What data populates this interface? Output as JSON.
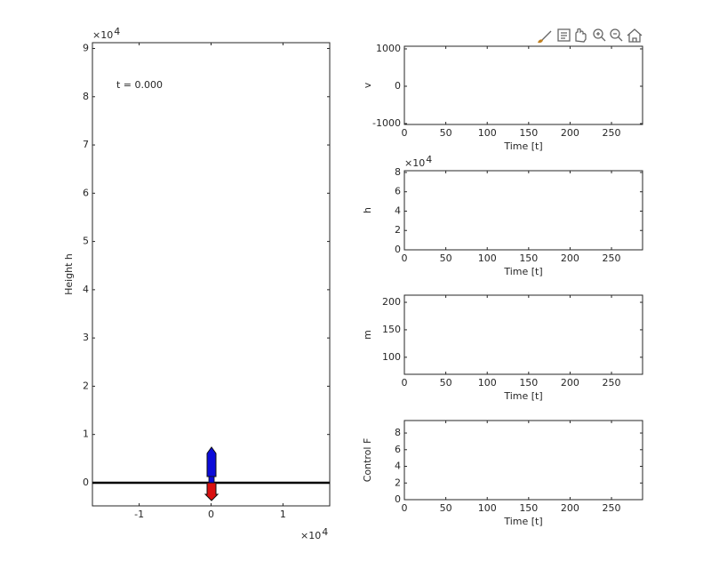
{
  "chart_data": [
    {
      "type": "line",
      "annotation": "t = 0.000",
      "ylabel": "Height h",
      "xlim": [
        -16500,
        16500
      ],
      "xticks": [
        {
          "value": -10000,
          "label": "-1"
        },
        0,
        {
          "value": 10000,
          "label": "1"
        }
      ],
      "x_exponent": {
        "base": "×10",
        "power": "4"
      },
      "ylim": [
        -4800,
        91200
      ],
      "yticks": [
        0,
        {
          "value": 10000,
          "label": "1"
        },
        {
          "value": 20000,
          "label": "2"
        },
        {
          "value": 30000,
          "label": "3"
        },
        {
          "value": 40000,
          "label": "4"
        },
        {
          "value": 50000,
          "label": "5"
        },
        {
          "value": 60000,
          "label": "6"
        },
        {
          "value": 70000,
          "label": "7"
        },
        {
          "value": 80000,
          "label": "8"
        },
        {
          "value": 90000,
          "label": "9"
        }
      ],
      "y_exponent": {
        "base": "×10",
        "power": "4"
      }
    },
    {
      "type": "line",
      "xlabel": "Time [t]",
      "ylabel": "v",
      "xlim": [
        0,
        287.5
      ],
      "xticks": [
        0,
        50,
        100,
        150,
        200,
        250
      ],
      "ylim": [
        -1024,
        1071
      ],
      "yticks": [
        -1000,
        0,
        1000
      ]
    },
    {
      "type": "line",
      "xlabel": "Time [t]",
      "ylabel": "h",
      "xlim": [
        0,
        287.5
      ],
      "xticks": [
        0,
        50,
        100,
        150,
        200,
        250
      ],
      "ylim": [
        0,
        81800
      ],
      "yticks": [
        0,
        {
          "value": 20000,
          "label": "2"
        },
        {
          "value": 40000,
          "label": "4"
        },
        {
          "value": 60000,
          "label": "6"
        },
        {
          "value": 80000,
          "label": "8"
        }
      ],
      "y_exponent": {
        "base": "×10",
        "power": "4"
      }
    },
    {
      "type": "line",
      "xlabel": "Time [t]",
      "ylabel": "m",
      "xlim": [
        0,
        287.5
      ],
      "xticks": [
        0,
        50,
        100,
        150,
        200,
        250
      ],
      "ylim": [
        69,
        213
      ],
      "yticks": [
        100,
        150,
        200
      ]
    },
    {
      "type": "line",
      "xlabel": "Time [t]",
      "ylabel": "Control F",
      "xlim": [
        0,
        287.5
      ],
      "xticks": [
        0,
        50,
        100,
        150,
        200,
        250
      ],
      "ylim": [
        0,
        9.5
      ],
      "yticks": [
        0,
        2,
        4,
        6,
        8
      ]
    }
  ]
}
